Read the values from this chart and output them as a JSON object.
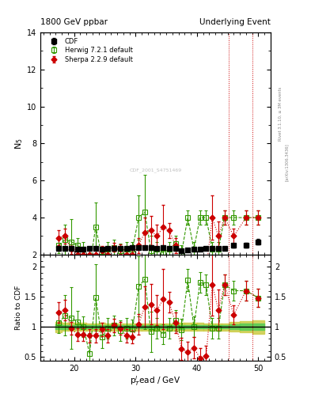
{
  "title_left": "1800 GeV ppbar",
  "title_right": "Underlying Event",
  "ylabel_main": "N$_5$",
  "ylabel_ratio": "Ratio to CDF",
  "xlabel": "p$_T^l$ead / GeV",
  "right_label": "Rivet 3.1.10, ≥ 3M events",
  "right_label2": "[arXiv:1306.3436]",
  "watermark": "CDF_2001_S4751469",
  "xlim": [
    14.5,
    52
  ],
  "ylim_main": [
    2,
    14
  ],
  "ylim_ratio": [
    0.44,
    2.2
  ],
  "cdf_x": [
    17.5,
    18.5,
    19.5,
    20.5,
    21.5,
    22.5,
    23.5,
    24.5,
    25.5,
    26.5,
    27.5,
    28.5,
    29.5,
    30.5,
    31.5,
    32.5,
    33.5,
    34.5,
    35.5,
    36.5,
    37.5,
    38.5,
    39.5,
    40.5,
    41.5,
    42.5,
    43.5,
    44.5,
    46.0,
    48.0,
    50.0
  ],
  "cdf_y": [
    2.35,
    2.35,
    2.35,
    2.3,
    2.3,
    2.35,
    2.35,
    2.3,
    2.35,
    2.35,
    2.35,
    2.35,
    2.4,
    2.4,
    2.4,
    2.4,
    2.35,
    2.4,
    2.35,
    2.35,
    2.2,
    2.25,
    2.3,
    2.3,
    2.35,
    2.35,
    2.35,
    2.35,
    2.5,
    2.5,
    2.7
  ],
  "cdf_yerr": [
    0.1,
    0.08,
    0.08,
    0.07,
    0.07,
    0.07,
    0.07,
    0.07,
    0.07,
    0.07,
    0.07,
    0.07,
    0.07,
    0.07,
    0.07,
    0.07,
    0.07,
    0.07,
    0.07,
    0.07,
    0.07,
    0.07,
    0.07,
    0.07,
    0.07,
    0.07,
    0.07,
    0.07,
    0.1,
    0.12,
    0.15
  ],
  "herwig_x": [
    17.5,
    18.5,
    19.5,
    20.5,
    21.5,
    22.5,
    23.5,
    24.5,
    25.5,
    26.5,
    27.5,
    28.5,
    29.5,
    30.5,
    31.5,
    32.5,
    33.5,
    34.5,
    35.5,
    36.5,
    37.5,
    38.5,
    39.5,
    40.5,
    41.5,
    42.5,
    43.5,
    44.5,
    46.0,
    48.0,
    50.0
  ],
  "herwig_y": [
    2.5,
    2.8,
    2.7,
    2.5,
    2.3,
    1.3,
    3.5,
    1.9,
    2.3,
    2.4,
    2.2,
    2.3,
    2.3,
    4.0,
    4.3,
    2.2,
    2.3,
    2.1,
    2.3,
    2.6,
    2.1,
    4.0,
    2.3,
    4.0,
    4.0,
    2.3,
    2.3,
    4.0,
    4.0,
    4.0,
    4.0
  ],
  "herwig_yerr": [
    0.4,
    0.8,
    1.2,
    0.4,
    0.4,
    0.8,
    1.3,
    0.4,
    0.4,
    0.4,
    0.4,
    0.4,
    0.4,
    1.2,
    2.0,
    0.8,
    0.4,
    0.4,
    0.4,
    0.4,
    0.4,
    0.4,
    0.4,
    0.4,
    0.4,
    0.4,
    0.4,
    0.4,
    0.4,
    0.4,
    0.4
  ],
  "sherpa_x": [
    17.5,
    18.5,
    19.5,
    20.5,
    21.5,
    22.5,
    23.5,
    24.5,
    25.5,
    26.5,
    27.5,
    28.5,
    29.5,
    30.5,
    31.5,
    32.5,
    33.5,
    34.5,
    35.5,
    36.5,
    37.5,
    38.5,
    39.5,
    40.5,
    41.5,
    42.5,
    43.5,
    44.5,
    46.0,
    48.0,
    50.0
  ],
  "sherpa_y": [
    2.9,
    3.0,
    2.3,
    2.0,
    2.0,
    2.0,
    2.0,
    2.2,
    2.0,
    2.4,
    2.3,
    2.0,
    2.0,
    2.5,
    3.2,
    3.3,
    3.0,
    3.5,
    3.3,
    2.5,
    1.4,
    1.3,
    1.5,
    1.1,
    1.2,
    4.0,
    3.0,
    4.0,
    3.0,
    4.0,
    4.0
  ],
  "sherpa_yerr": [
    0.4,
    0.4,
    0.25,
    0.25,
    0.25,
    0.25,
    0.25,
    0.25,
    0.25,
    0.25,
    0.25,
    0.25,
    0.25,
    0.4,
    0.8,
    0.8,
    0.6,
    1.2,
    0.4,
    0.4,
    0.4,
    0.4,
    0.4,
    0.4,
    0.4,
    1.2,
    0.8,
    0.4,
    0.4,
    0.4,
    0.4
  ],
  "vline_x1": 45.2,
  "vline_x2": 49.0,
  "cdf_color": "#000000",
  "herwig_color": "#339900",
  "sherpa_color": "#cc0000",
  "green_band_color": "#55cc55",
  "yellow_band_color": "#cccc44",
  "background_color": "#ffffff"
}
